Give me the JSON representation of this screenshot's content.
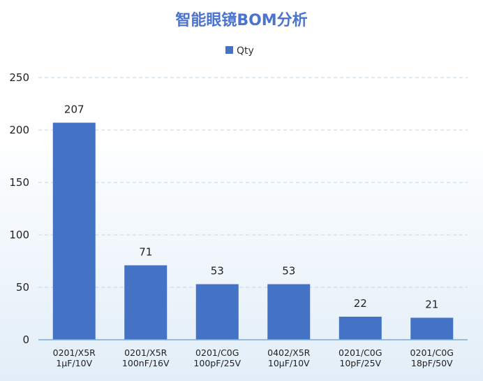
{
  "chart_data": {
    "type": "bar",
    "title": "智能眼镜BOM分析",
    "categories": [
      [
        "0201/X5R",
        "1µF/10V"
      ],
      [
        "0201/X5R",
        "100nF/16V"
      ],
      [
        "0201/C0G",
        "100pF/25V"
      ],
      [
        "0402/X5R",
        "10µF/10V"
      ],
      [
        "0201/C0G",
        "10pF/25V"
      ],
      [
        "0201/C0G",
        "18pF/50V"
      ]
    ],
    "series": [
      {
        "name": "Qty",
        "values": [
          207,
          71,
          53,
          53,
          22,
          21
        ],
        "color": "#4472c4"
      }
    ],
    "ylim": [
      0,
      250
    ],
    "yticks": [
      0,
      50,
      100,
      150,
      200,
      250
    ],
    "grid": true,
    "legend_position": "top-center",
    "data_labels": true
  }
}
